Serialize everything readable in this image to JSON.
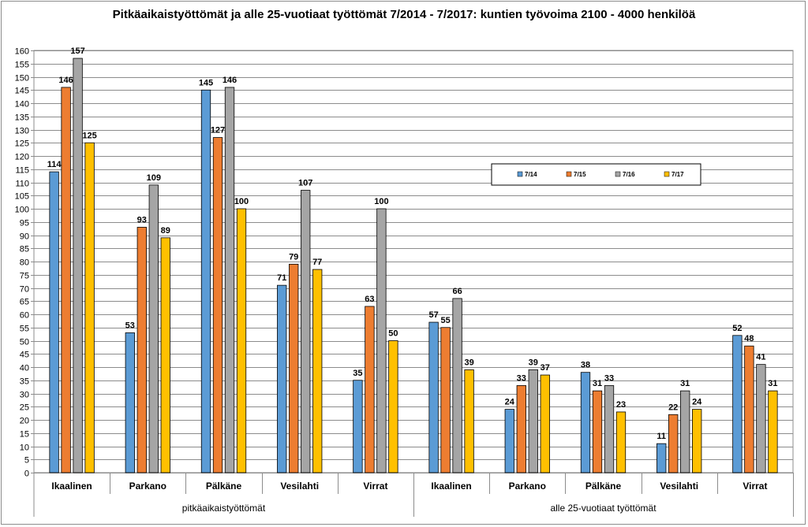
{
  "chart_data": {
    "type": "bar",
    "title": "Pitkäaikaistyöttömät ja alle 25-vuotiaat työttömät 7/2014 - 7/2017: kuntien työvoima 2100 - 4000 henkilöä",
    "xlabel": "",
    "ylabel": "",
    "ylim": [
      0,
      160
    ],
    "ytick_step": 5,
    "grid": true,
    "legend_position": "right-middle",
    "groups": [
      {
        "label": "pitkäaikaistyöttömät",
        "categories": [
          "Ikaalinen",
          "Parkano",
          "Pälkäne",
          "Vesilahti",
          "Virrat"
        ]
      },
      {
        "label": "alle 25-vuotiaat työttömät",
        "categories": [
          "Ikaalinen",
          "Parkano",
          "Pälkäne",
          "Vesilahti",
          "Virrat"
        ]
      }
    ],
    "categories": [
      "Ikaalinen",
      "Parkano",
      "Pälkäne",
      "Vesilahti",
      "Virrat",
      "Ikaalinen",
      "Parkano",
      "Pälkäne",
      "Vesilahti",
      "Virrat"
    ],
    "series": [
      {
        "name": "7/14",
        "color": "#5b9bd5",
        "values": [
          114,
          53,
          145,
          71,
          35,
          57,
          24,
          38,
          11,
          52
        ]
      },
      {
        "name": "7/15",
        "color": "#ed7d31",
        "values": [
          146,
          93,
          127,
          79,
          63,
          55,
          33,
          31,
          22,
          48
        ]
      },
      {
        "name": "7/16",
        "color": "#a5a5a5",
        "values": [
          157,
          109,
          146,
          107,
          100,
          66,
          39,
          33,
          31,
          41
        ]
      },
      {
        "name": "7/17",
        "color": "#ffc000",
        "values": [
          125,
          89,
          100,
          77,
          50,
          39,
          37,
          23,
          24,
          31
        ]
      }
    ]
  }
}
